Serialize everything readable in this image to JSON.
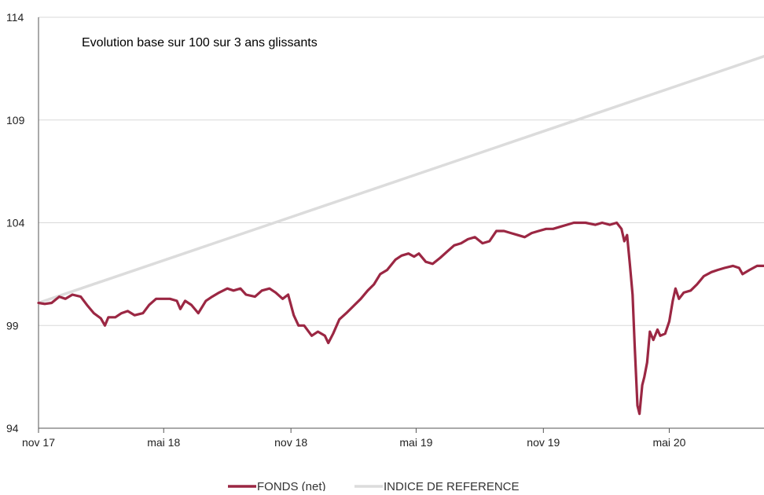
{
  "chart_data": {
    "type": "line",
    "title": "Evolution base sur 100 sur 3 ans glissants",
    "xlabel": "",
    "ylabel": "",
    "ylim": [
      94,
      114
    ],
    "yticks": [
      "94",
      "99",
      "104",
      "109",
      "114"
    ],
    "xlim": [
      "2017-11-01",
      "2020-09-15"
    ],
    "xticks": [
      {
        "date": "2017-11-01",
        "label": "nov 17"
      },
      {
        "date": "2018-05-01",
        "label": "mai 18"
      },
      {
        "date": "2018-11-01",
        "label": "nov 18"
      },
      {
        "date": "2019-05-01",
        "label": "mai 19"
      },
      {
        "date": "2019-11-01",
        "label": "nov 19"
      },
      {
        "date": "2020-05-01",
        "label": "mai 20"
      }
    ],
    "grid": "horizontal",
    "legend_position": "bottom-center",
    "series": [
      {
        "name": "FONDS (net)",
        "color": "#9b2743",
        "points": [
          [
            "2017-11-01",
            100.1
          ],
          [
            "2017-11-10",
            100.05
          ],
          [
            "2017-11-20",
            100.1
          ],
          [
            "2017-12-01",
            100.4
          ],
          [
            "2017-12-10",
            100.3
          ],
          [
            "2017-12-20",
            100.5
          ],
          [
            "2018-01-01",
            100.4
          ],
          [
            "2018-01-10",
            100.0
          ],
          [
            "2018-01-20",
            99.6
          ],
          [
            "2018-01-30",
            99.35
          ],
          [
            "2018-02-05",
            99.0
          ],
          [
            "2018-02-10",
            99.4
          ],
          [
            "2018-02-20",
            99.4
          ],
          [
            "2018-03-01",
            99.6
          ],
          [
            "2018-03-10",
            99.7
          ],
          [
            "2018-03-20",
            99.5
          ],
          [
            "2018-04-01",
            99.6
          ],
          [
            "2018-04-10",
            100.0
          ],
          [
            "2018-04-20",
            100.3
          ],
          [
            "2018-05-01",
            100.3
          ],
          [
            "2018-05-10",
            100.3
          ],
          [
            "2018-05-20",
            100.2
          ],
          [
            "2018-05-25",
            99.8
          ],
          [
            "2018-06-01",
            100.2
          ],
          [
            "2018-06-10",
            100.0
          ],
          [
            "2018-06-20",
            99.6
          ],
          [
            "2018-07-01",
            100.2
          ],
          [
            "2018-07-10",
            100.4
          ],
          [
            "2018-07-20",
            100.6
          ],
          [
            "2018-08-01",
            100.8
          ],
          [
            "2018-08-10",
            100.7
          ],
          [
            "2018-08-20",
            100.8
          ],
          [
            "2018-08-28",
            100.5
          ],
          [
            "2018-09-10",
            100.4
          ],
          [
            "2018-09-20",
            100.7
          ],
          [
            "2018-10-01",
            100.8
          ],
          [
            "2018-10-10",
            100.6
          ],
          [
            "2018-10-20",
            100.3
          ],
          [
            "2018-10-28",
            100.5
          ],
          [
            "2018-11-05",
            99.5
          ],
          [
            "2018-11-12",
            99.0
          ],
          [
            "2018-11-20",
            99.0
          ],
          [
            "2018-12-01",
            98.5
          ],
          [
            "2018-12-10",
            98.7
          ],
          [
            "2018-12-20",
            98.5
          ],
          [
            "2018-12-25",
            98.15
          ],
          [
            "2019-01-01",
            98.6
          ],
          [
            "2019-01-10",
            99.3
          ],
          [
            "2019-01-20",
            99.6
          ],
          [
            "2019-02-01",
            100.0
          ],
          [
            "2019-02-10",
            100.3
          ],
          [
            "2019-02-20",
            100.7
          ],
          [
            "2019-03-01",
            101.0
          ],
          [
            "2019-03-10",
            101.5
          ],
          [
            "2019-03-20",
            101.7
          ],
          [
            "2019-04-01",
            102.2
          ],
          [
            "2019-04-10",
            102.4
          ],
          [
            "2019-04-20",
            102.5
          ],
          [
            "2019-04-28",
            102.35
          ],
          [
            "2019-05-05",
            102.5
          ],
          [
            "2019-05-15",
            102.1
          ],
          [
            "2019-05-25",
            102.0
          ],
          [
            "2019-06-05",
            102.3
          ],
          [
            "2019-06-15",
            102.6
          ],
          [
            "2019-06-25",
            102.9
          ],
          [
            "2019-07-05",
            103.0
          ],
          [
            "2019-07-15",
            103.2
          ],
          [
            "2019-07-25",
            103.3
          ],
          [
            "2019-08-05",
            103.0
          ],
          [
            "2019-08-15",
            103.1
          ],
          [
            "2019-08-25",
            103.6
          ],
          [
            "2019-09-05",
            103.6
          ],
          [
            "2019-09-15",
            103.5
          ],
          [
            "2019-09-25",
            103.4
          ],
          [
            "2019-10-05",
            103.3
          ],
          [
            "2019-10-15",
            103.5
          ],
          [
            "2019-10-25",
            103.6
          ],
          [
            "2019-11-05",
            103.7
          ],
          [
            "2019-11-15",
            103.7
          ],
          [
            "2019-11-25",
            103.8
          ],
          [
            "2019-12-05",
            103.9
          ],
          [
            "2019-12-15",
            104.0
          ],
          [
            "2020-01-01",
            104.0
          ],
          [
            "2020-01-15",
            103.9
          ],
          [
            "2020-01-25",
            104.0
          ],
          [
            "2020-02-05",
            103.9
          ],
          [
            "2020-02-15",
            104.0
          ],
          [
            "2020-02-22",
            103.7
          ],
          [
            "2020-02-26",
            103.1
          ],
          [
            "2020-03-01",
            103.4
          ],
          [
            "2020-03-05",
            102.0
          ],
          [
            "2020-03-09",
            100.5
          ],
          [
            "2020-03-12",
            98.0
          ],
          [
            "2020-03-16",
            95.1
          ],
          [
            "2020-03-19",
            94.7
          ],
          [
            "2020-03-23",
            96.1
          ],
          [
            "2020-03-26",
            96.5
          ],
          [
            "2020-03-30",
            97.2
          ],
          [
            "2020-04-03",
            98.7
          ],
          [
            "2020-04-08",
            98.3
          ],
          [
            "2020-04-14",
            98.8
          ],
          [
            "2020-04-18",
            98.5
          ],
          [
            "2020-04-25",
            98.6
          ],
          [
            "2020-05-01",
            99.2
          ],
          [
            "2020-05-06",
            100.2
          ],
          [
            "2020-05-10",
            100.8
          ],
          [
            "2020-05-15",
            100.3
          ],
          [
            "2020-05-22",
            100.6
          ],
          [
            "2020-06-01",
            100.7
          ],
          [
            "2020-06-10",
            101.0
          ],
          [
            "2020-06-20",
            101.4
          ],
          [
            "2020-07-01",
            101.6
          ],
          [
            "2020-07-10",
            101.7
          ],
          [
            "2020-07-20",
            101.8
          ],
          [
            "2020-08-01",
            101.9
          ],
          [
            "2020-08-10",
            101.8
          ],
          [
            "2020-08-15",
            101.5
          ],
          [
            "2020-08-25",
            101.7
          ],
          [
            "2020-09-05",
            101.9
          ],
          [
            "2020-09-15",
            101.9
          ]
        ]
      },
      {
        "name": "INDICE DE REFERENCE",
        "color": "#dcdcdc",
        "points": [
          [
            "2017-11-01",
            100.1
          ],
          [
            "2020-09-15",
            112.1
          ]
        ]
      }
    ]
  }
}
